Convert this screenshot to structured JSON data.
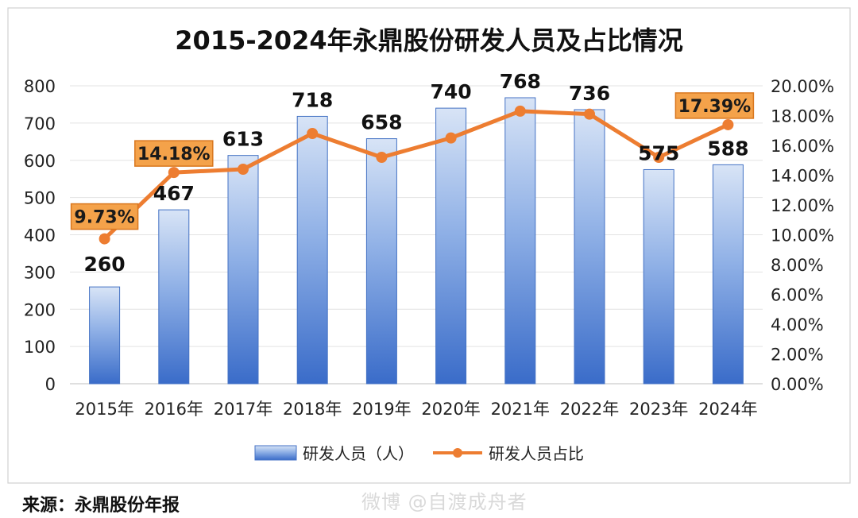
{
  "chart_data": {
    "type": "bar",
    "title": "2015-2024年永鼎股份研发人员及占比情况",
    "categories": [
      "2015年",
      "2016年",
      "2017年",
      "2018年",
      "2019年",
      "2020年",
      "2021年",
      "2022年",
      "2023年",
      "2024年"
    ],
    "series": [
      {
        "name": "研发人员（人）",
        "type": "bar",
        "axis": "left",
        "values": [
          260,
          467,
          613,
          718,
          658,
          740,
          768,
          736,
          575,
          588
        ],
        "color": "#4472c4"
      },
      {
        "name": "研发人员占比",
        "type": "line",
        "axis": "right",
        "values": [
          9.73,
          14.18,
          14.4,
          16.8,
          15.2,
          16.5,
          18.3,
          18.1,
          15.2,
          17.39
        ],
        "color": "#ed7d31"
      }
    ],
    "bar_labels": [
      "260",
      "467",
      "613",
      "718",
      "658",
      "740",
      "768",
      "736",
      "575",
      "588"
    ],
    "line_labels": [
      {
        "index": 0,
        "text": "9.73%"
      },
      {
        "index": 1,
        "text": "14.18%"
      },
      {
        "index": 9,
        "text": "17.39%"
      }
    ],
    "y_left": {
      "min": 0,
      "max": 800,
      "ticks": [
        "0",
        "100",
        "200",
        "300",
        "400",
        "500",
        "600",
        "700",
        "800"
      ]
    },
    "y_right": {
      "min": 0,
      "max": 20,
      "ticks": [
        "0.00%",
        "2.00%",
        "4.00%",
        "6.00%",
        "8.00%",
        "10.00%",
        "12.00%",
        "14.00%",
        "16.00%",
        "18.00%",
        "20.00%"
      ]
    },
    "grid": true,
    "legend_position": "bottom"
  },
  "source_text": "来源：永鼎股份年报",
  "watermark_text": "微博 @自渡成舟者"
}
